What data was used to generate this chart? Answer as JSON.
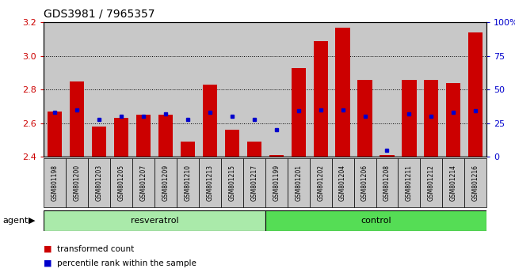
{
  "title": "GDS3981 / 7965357",
  "samples": [
    "GSM801198",
    "GSM801200",
    "GSM801203",
    "GSM801205",
    "GSM801207",
    "GSM801209",
    "GSM801210",
    "GSM801213",
    "GSM801215",
    "GSM801217",
    "GSM801199",
    "GSM801201",
    "GSM801202",
    "GSM801204",
    "GSM801206",
    "GSM801208",
    "GSM801211",
    "GSM801212",
    "GSM801214",
    "GSM801216"
  ],
  "transformed_count": [
    2.67,
    2.85,
    2.58,
    2.63,
    2.65,
    2.65,
    2.49,
    2.83,
    2.56,
    2.49,
    2.41,
    2.93,
    3.09,
    3.17,
    2.86,
    2.41,
    2.86,
    2.86,
    2.84,
    3.14
  ],
  "percentile_rank": [
    33,
    35,
    28,
    30,
    30,
    32,
    28,
    33,
    30,
    28,
    20,
    34,
    35,
    35,
    30,
    5,
    32,
    30,
    33,
    34
  ],
  "resveratrol_count": 10,
  "control_count": 10,
  "resveratrol_label": "resveratrol",
  "control_label": "control",
  "agent_label": "agent",
  "ylim_left": [
    2.4,
    3.2
  ],
  "ylim_right": [
    0,
    100
  ],
  "yticks_left": [
    2.4,
    2.6,
    2.8,
    3.0,
    3.2
  ],
  "yticks_right": [
    0,
    25,
    50,
    75,
    100
  ],
  "ytick_labels_right": [
    "0",
    "25",
    "50",
    "75",
    "100%"
  ],
  "bar_color": "#cc0000",
  "dot_color": "#0000cc",
  "col_bg_color": "#c8c8c8",
  "plot_bg": "#ffffff",
  "resveratrol_bg": "#aaeaaa",
  "control_bg": "#55dd55",
  "legend_tc": "transformed count",
  "legend_pr": "percentile rank within the sample",
  "bar_width": 0.65,
  "baseline": 2.4
}
